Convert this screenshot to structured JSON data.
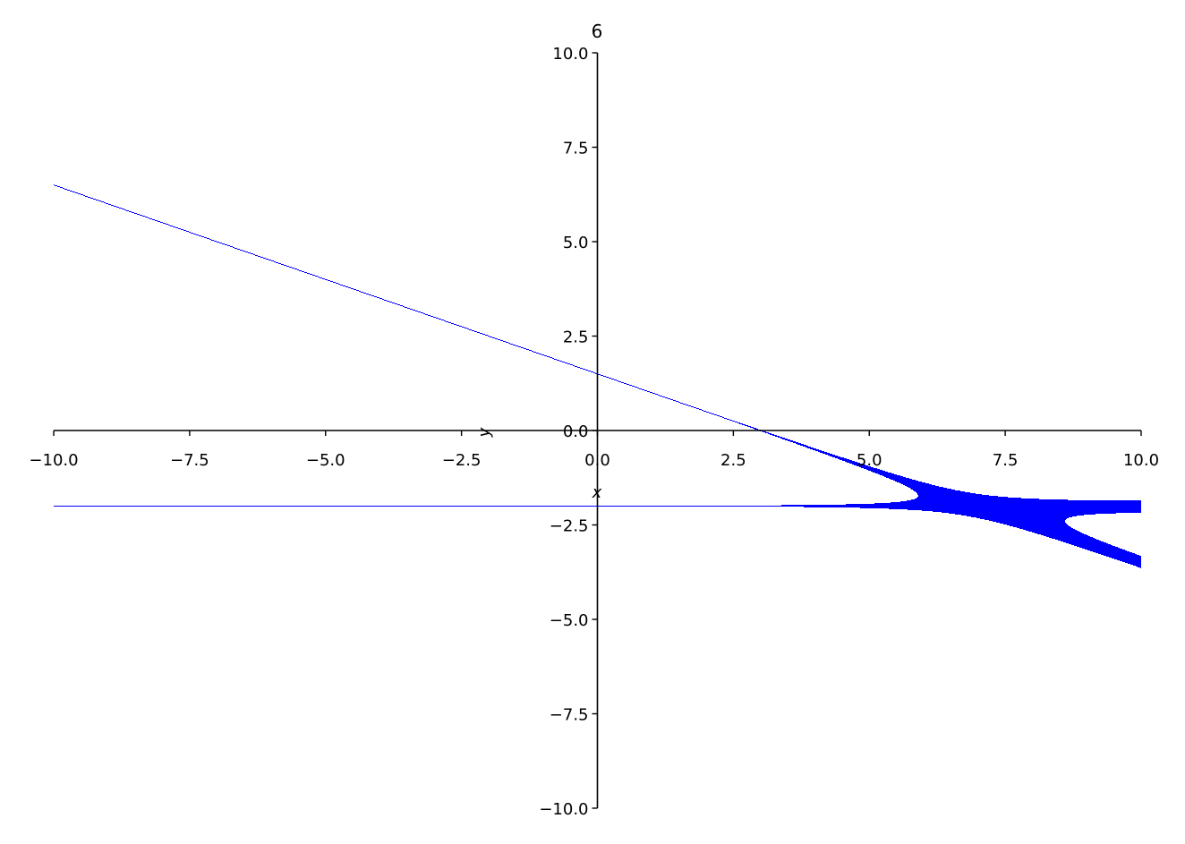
{
  "chart_data": {
    "type": "implicit",
    "title": "6",
    "xlabel": "x",
    "ylabel": "y",
    "xlim": [
      -10,
      10
    ],
    "ylim": [
      -10,
      10
    ],
    "xticks": [
      "−10.0",
      "−7.5",
      "−5.0",
      "−2.5",
      "0.0",
      "2.5",
      "5.0",
      "7.5",
      "10.0"
    ],
    "yticks": [
      "−10.0",
      "−7.5",
      "−5.0",
      "−2.5",
      "0.0",
      "2.5",
      "5.0",
      "7.5",
      "10.0"
    ],
    "xtick_values": [
      -10,
      -7.5,
      -5,
      -2.5,
      0,
      2.5,
      5,
      7.5,
      10
    ],
    "ytick_values": [
      -10,
      -7.5,
      -5,
      -2.5,
      0,
      2.5,
      5,
      7.5,
      10
    ],
    "asymptotes": [
      {
        "slope": -0.5,
        "intercept": 1.5
      },
      {
        "slope": 0,
        "intercept": -2
      }
    ],
    "color": "#0000ff",
    "grid": false
  }
}
